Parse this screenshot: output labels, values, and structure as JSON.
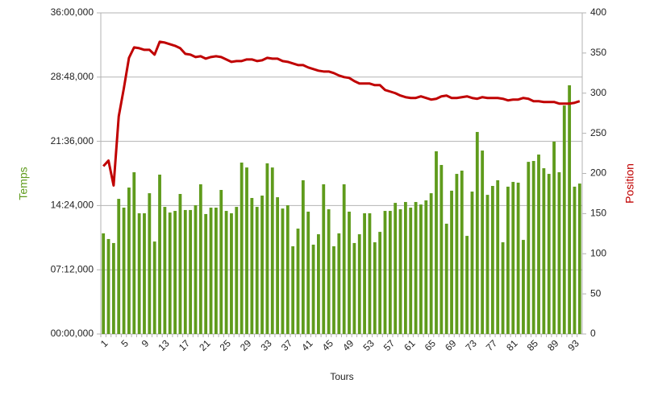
{
  "chart_data": {
    "type": "combo",
    "x_label": "Tours",
    "y_label": "Temps",
    "y2_label": "Position",
    "categories": [
      "1",
      null,
      null,
      null,
      "5",
      null,
      null,
      null,
      "9",
      null,
      null,
      null,
      "13",
      null,
      null,
      null,
      "17",
      null,
      null,
      null,
      "21",
      null,
      null,
      null,
      "25",
      null,
      null,
      null,
      "29",
      null,
      null,
      null,
      "33",
      null,
      null,
      null,
      "37",
      null,
      null,
      null,
      "41",
      null,
      null,
      null,
      "45",
      null,
      null,
      null,
      "49",
      null,
      null,
      null,
      "53",
      null,
      null,
      null,
      "57",
      null,
      null,
      null,
      "61",
      null,
      null,
      null,
      "65",
      null,
      null,
      null,
      "69",
      null,
      null,
      null,
      "73",
      null,
      null,
      null,
      "77",
      null,
      null,
      null,
      "81",
      null,
      null,
      null,
      "85",
      null,
      null,
      null,
      "89",
      null,
      null,
      null,
      "93",
      null
    ],
    "series": [
      {
        "type": "bar",
        "axis": "y",
        "color": "#5f9b1c",
        "values": [
          677,
          639,
          612,
          909,
          850,
          985,
          1088,
          812,
          812,
          947,
          622,
          1072,
          855,
          817,
          828,
          942,
          834,
          834,
          866,
          1007,
          807,
          850,
          850,
          969,
          828,
          812,
          855,
          1153,
          1120,
          915,
          855,
          931,
          1148,
          1120,
          920,
          844,
          866,
          590,
          709,
          1034,
          823,
          601,
          671,
          1007,
          839,
          590,
          677,
          1007,
          823,
          612,
          671,
          812,
          812,
          617,
          687,
          828,
          828,
          882,
          839,
          888,
          850,
          888,
          871,
          899,
          947,
          1229,
          1137,
          742,
          964,
          1077,
          1099,
          660,
          958,
          1359,
          1234,
          936,
          996,
          1034,
          617,
          991,
          1023,
          1018,
          633,
          1158,
          1164,
          1207,
          1115,
          1077,
          1294,
          1088,
          1537,
          1673,
          991,
          1012
        ]
      },
      {
        "type": "line",
        "axis": "y2",
        "color": "#c00000",
        "values": [
          209,
          216,
          185,
          271,
          306,
          344,
          357,
          356,
          354,
          354,
          348,
          364,
          363,
          361,
          359,
          356,
          349,
          348,
          345,
          346,
          343,
          345,
          346,
          345,
          342,
          339,
          340,
          340,
          342,
          342,
          340,
          341,
          344,
          343,
          343,
          340,
          339,
          337,
          335,
          335,
          332,
          330,
          328,
          327,
          327,
          325,
          322,
          320,
          319,
          315,
          312,
          312,
          312,
          310,
          310,
          304,
          302,
          300,
          297,
          295,
          294,
          294,
          296,
          294,
          292,
          293,
          296,
          297,
          294,
          294,
          295,
          296,
          294,
          293,
          295,
          294,
          294,
          294,
          293,
          291,
          292,
          292,
          294,
          293,
          290,
          290,
          289,
          289,
          289,
          287,
          287,
          287,
          288,
          290
        ]
      }
    ],
    "ylim": [
      0,
      2160
    ],
    "yticks": [
      {
        "value": 0,
        "label": "00:00,000"
      },
      {
        "value": 432,
        "label": "07:12,000"
      },
      {
        "value": 864,
        "label": "14:24,000"
      },
      {
        "value": 1296,
        "label": "21:36,000"
      },
      {
        "value": 1728,
        "label": "28:48,000"
      },
      {
        "value": 2160,
        "label": "36:00,000"
      }
    ],
    "y2lim": [
      0,
      400
    ],
    "y2ticks": [
      0,
      50,
      100,
      150,
      200,
      250,
      300,
      350,
      400
    ],
    "grid": true
  }
}
